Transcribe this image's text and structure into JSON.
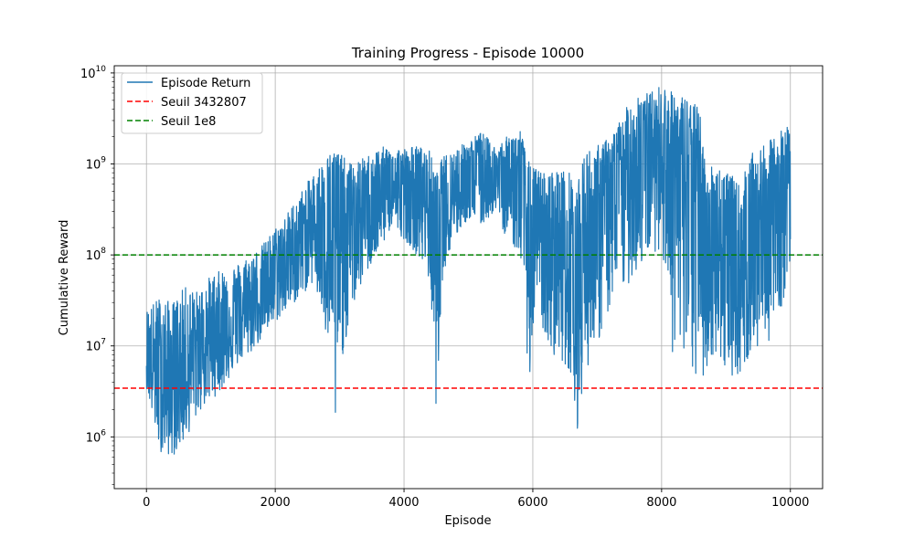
{
  "chart_data": {
    "type": "line",
    "title": "Training Progress - Episode 10000",
    "xlabel": "Episode",
    "ylabel": "Cumulative Reward",
    "xlim": [
      -500,
      10500
    ],
    "ylim": [
      270000,
      12000000000
    ],
    "yscale": "log",
    "grid": true,
    "legend_position": "top-left",
    "x_ticks": [
      0,
      2000,
      4000,
      6000,
      8000,
      10000
    ],
    "x_tick_labels": [
      "0",
      "2000",
      "4000",
      "6000",
      "8000",
      "10000"
    ],
    "y_ticks": [
      1000000,
      10000000,
      100000000,
      1000000000,
      10000000000
    ],
    "y_tick_labels": [
      {
        "base": "10",
        "exp": "6"
      },
      {
        "base": "10",
        "exp": "7"
      },
      {
        "base": "10",
        "exp": "8"
      },
      {
        "base": "10",
        "exp": "9"
      },
      {
        "base": "10",
        "exp": "10"
      }
    ],
    "series": [
      {
        "name": "Episode Return",
        "color": "#1f77b4",
        "style": "solid",
        "x": [
          0,
          200,
          400,
          600,
          800,
          1000,
          1200,
          1400,
          1600,
          1800,
          2000,
          2200,
          2400,
          2600,
          2800,
          2950,
          3050,
          3200,
          3400,
          3600,
          3800,
          4000,
          4200,
          4400,
          4500,
          4600,
          4800,
          5000,
          5200,
          5400,
          5600,
          5800,
          5950,
          6050,
          6200,
          6400,
          6600,
          6700,
          6800,
          7000,
          7200,
          7400,
          7600,
          7800,
          8000,
          8200,
          8400,
          8600,
          8700,
          8800,
          9000,
          9200,
          9400,
          9600,
          9800,
          10000
        ],
        "upper": [
          25000000,
          35000000,
          30000000,
          45000000,
          40000000,
          60000000,
          70000000,
          80000000,
          100000000,
          130000000,
          200000000,
          300000000,
          500000000,
          800000000,
          1200000000,
          1800000000,
          1200000000,
          1000000000,
          1200000000,
          1500000000,
          1600000000,
          1500000000,
          1600000000,
          1400000000,
          800000000,
          1200000000,
          1500000000,
          1800000000,
          2300000000,
          1600000000,
          2000000000,
          2500000000,
          1000000000,
          900000000,
          800000000,
          900000000,
          800000000,
          600000000,
          1400000000,
          1600000000,
          2000000000,
          3500000000,
          6500000000,
          6000000000,
          7500000000,
          6000000000,
          5500000000,
          4000000000,
          700000000,
          1100000000,
          900000000,
          600000000,
          1300000000,
          1600000000,
          2200000000,
          2800000000
        ],
        "lower": [
          3500000,
          700000,
          600000,
          900000,
          1800000,
          2500000,
          3500000,
          6000000,
          8000000,
          12000000,
          18000000,
          25000000,
          35000000,
          50000000,
          10000000,
          900000,
          8000000,
          25000000,
          60000000,
          100000000,
          200000000,
          150000000,
          100000000,
          50000000,
          2000000,
          60000000,
          150000000,
          250000000,
          200000000,
          300000000,
          150000000,
          100000000,
          3500000,
          40000000,
          10000000,
          7000000,
          5000000,
          1100000,
          5000000,
          10000000,
          25000000,
          40000000,
          60000000,
          100000000,
          120000000,
          5000000,
          5000000,
          3300000,
          5000000,
          8000000,
          5000000,
          4500000,
          8000000,
          10000000,
          15000000,
          80000000
        ],
        "mid": [
          8000000,
          4000000,
          3500000,
          5000000,
          8000000,
          12000000,
          15000000,
          20000000,
          25000000,
          35000000,
          50000000,
          80000000,
          120000000,
          200000000,
          300000000,
          60000000,
          150000000,
          200000000,
          300000000,
          400000000,
          500000000,
          450000000,
          500000000,
          400000000,
          60000000,
          300000000,
          500000000,
          700000000,
          800000000,
          700000000,
          600000000,
          600000000,
          100000000,
          200000000,
          100000000,
          120000000,
          100000000,
          30000000,
          150000000,
          250000000,
          400000000,
          700000000,
          1200000000,
          1400000000,
          2000000000,
          1000000000,
          800000000,
          600000000,
          80000000,
          150000000,
          100000000,
          60000000,
          150000000,
          200000000,
          400000000,
          800000000
        ]
      },
      {
        "name": "Seuil 3432807",
        "color": "#ff0000",
        "style": "dashed",
        "value": 3432807
      },
      {
        "name": "Seuil 1e8",
        "color": "#008000",
        "style": "dashed",
        "value": 100000000
      }
    ]
  }
}
